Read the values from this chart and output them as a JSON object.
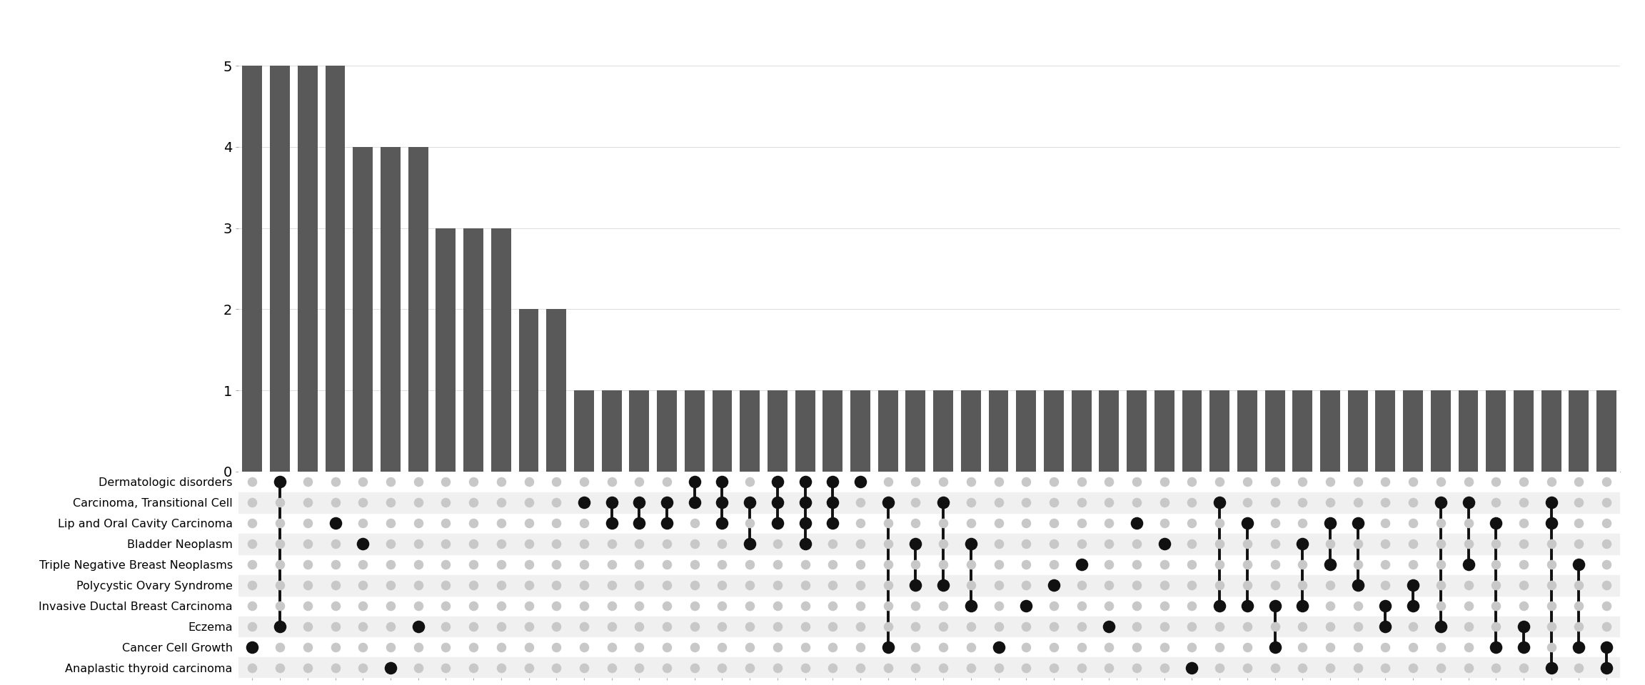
{
  "bar_heights": [
    5,
    5,
    5,
    5,
    4,
    4,
    4,
    3,
    3,
    3,
    2,
    2,
    1,
    1,
    1,
    1,
    1,
    1,
    1,
    1,
    1,
    1,
    1,
    1,
    1,
    1,
    1,
    1,
    1,
    1,
    1,
    1,
    1,
    1,
    1,
    1,
    1,
    1,
    1,
    1,
    1,
    1,
    1,
    1,
    1,
    1,
    1,
    1,
    1,
    1
  ],
  "set_labels": [
    "Dermatologic disorders",
    "Carcinoma, Transitional Cell",
    "Lip and Oral Cavity Carcinoma",
    "Bladder Neoplasm",
    "Triple Negative Breast Neoplasms",
    "Polycystic Ovary Syndrome",
    "Invasive Ductal Breast Carcinoma",
    "Eczema",
    "Cancer Cell Growth",
    "Anaplastic thyroid carcinoma"
  ],
  "bar_color": "#595959",
  "dot_active_color": "#111111",
  "dot_inactive_color": "#c8c8c8",
  "background_color": "#ffffff",
  "intersections": [
    [
      0,
      0,
      0,
      0,
      0,
      0,
      0,
      0,
      1,
      0
    ],
    [
      1,
      0,
      0,
      0,
      0,
      0,
      0,
      1,
      0,
      0
    ],
    [
      0,
      0,
      0,
      0,
      0,
      0,
      0,
      0,
      0,
      0
    ],
    [
      0,
      0,
      1,
      0,
      0,
      0,
      0,
      0,
      0,
      0
    ],
    [
      0,
      0,
      0,
      1,
      0,
      0,
      0,
      0,
      0,
      0
    ],
    [
      0,
      0,
      0,
      0,
      0,
      0,
      0,
      0,
      0,
      1
    ],
    [
      0,
      0,
      0,
      0,
      0,
      0,
      0,
      1,
      0,
      0
    ],
    [
      0,
      0,
      0,
      0,
      0,
      0,
      0,
      0,
      0,
      0
    ],
    [
      0,
      0,
      0,
      0,
      0,
      0,
      0,
      0,
      0,
      0
    ],
    [
      0,
      0,
      0,
      0,
      0,
      0,
      0,
      0,
      0,
      0
    ],
    [
      0,
      0,
      0,
      0,
      0,
      0,
      0,
      0,
      0,
      0
    ],
    [
      0,
      0,
      0,
      0,
      0,
      0,
      0,
      0,
      0,
      0
    ],
    [
      0,
      1,
      0,
      0,
      0,
      0,
      0,
      0,
      0,
      0
    ],
    [
      0,
      1,
      1,
      0,
      0,
      0,
      0,
      0,
      0,
      0
    ],
    [
      0,
      1,
      1,
      0,
      0,
      0,
      0,
      0,
      0,
      0
    ],
    [
      0,
      1,
      1,
      0,
      0,
      0,
      0,
      0,
      0,
      0
    ],
    [
      1,
      1,
      0,
      0,
      0,
      0,
      0,
      0,
      0,
      0
    ],
    [
      1,
      1,
      1,
      0,
      0,
      0,
      0,
      0,
      0,
      0
    ],
    [
      0,
      1,
      0,
      1,
      0,
      0,
      0,
      0,
      0,
      0
    ],
    [
      1,
      1,
      1,
      0,
      0,
      0,
      0,
      0,
      0,
      0
    ],
    [
      1,
      1,
      1,
      1,
      0,
      0,
      0,
      0,
      0,
      0
    ],
    [
      1,
      1,
      1,
      0,
      0,
      0,
      0,
      0,
      0,
      0
    ],
    [
      1,
      0,
      0,
      0,
      0,
      0,
      0,
      0,
      0,
      0
    ],
    [
      0,
      1,
      0,
      0,
      0,
      0,
      0,
      0,
      1,
      0
    ],
    [
      0,
      0,
      0,
      1,
      0,
      1,
      0,
      0,
      0,
      0
    ],
    [
      0,
      1,
      0,
      0,
      0,
      1,
      0,
      0,
      0,
      0
    ],
    [
      0,
      0,
      0,
      1,
      0,
      0,
      1,
      0,
      0,
      0
    ],
    [
      0,
      0,
      0,
      0,
      0,
      0,
      0,
      0,
      1,
      0
    ],
    [
      0,
      0,
      0,
      0,
      0,
      0,
      1,
      0,
      0,
      0
    ],
    [
      0,
      0,
      0,
      0,
      0,
      1,
      0,
      0,
      0,
      0
    ],
    [
      0,
      0,
      0,
      0,
      1,
      0,
      0,
      0,
      0,
      0
    ],
    [
      0,
      0,
      0,
      0,
      0,
      0,
      0,
      1,
      0,
      0
    ],
    [
      0,
      0,
      1,
      0,
      0,
      0,
      0,
      0,
      0,
      0
    ],
    [
      0,
      0,
      0,
      1,
      0,
      0,
      0,
      0,
      0,
      0
    ],
    [
      0,
      0,
      0,
      0,
      0,
      0,
      0,
      0,
      0,
      1
    ],
    [
      0,
      1,
      0,
      0,
      0,
      0,
      1,
      0,
      0,
      0
    ],
    [
      0,
      0,
      1,
      0,
      0,
      0,
      1,
      0,
      0,
      0
    ],
    [
      0,
      0,
      0,
      0,
      0,
      0,
      1,
      0,
      1,
      0
    ],
    [
      0,
      0,
      0,
      1,
      0,
      0,
      1,
      0,
      0,
      0
    ],
    [
      0,
      0,
      1,
      0,
      1,
      0,
      0,
      0,
      0,
      0
    ],
    [
      0,
      0,
      1,
      0,
      0,
      1,
      0,
      0,
      0,
      0
    ],
    [
      0,
      0,
      0,
      0,
      0,
      0,
      1,
      1,
      0,
      0
    ],
    [
      0,
      0,
      0,
      0,
      0,
      1,
      1,
      0,
      0,
      0
    ],
    [
      0,
      1,
      0,
      0,
      0,
      0,
      0,
      1,
      0,
      0
    ],
    [
      0,
      1,
      0,
      0,
      1,
      0,
      0,
      0,
      0,
      0
    ],
    [
      0,
      0,
      1,
      0,
      0,
      0,
      0,
      0,
      1,
      0
    ],
    [
      0,
      0,
      0,
      0,
      0,
      0,
      0,
      1,
      1,
      0
    ],
    [
      0,
      1,
      1,
      0,
      0,
      0,
      0,
      0,
      0,
      1
    ],
    [
      0,
      0,
      0,
      0,
      1,
      0,
      0,
      0,
      1,
      0
    ],
    [
      0,
      0,
      0,
      0,
      0,
      0,
      0,
      0,
      1,
      1
    ]
  ]
}
